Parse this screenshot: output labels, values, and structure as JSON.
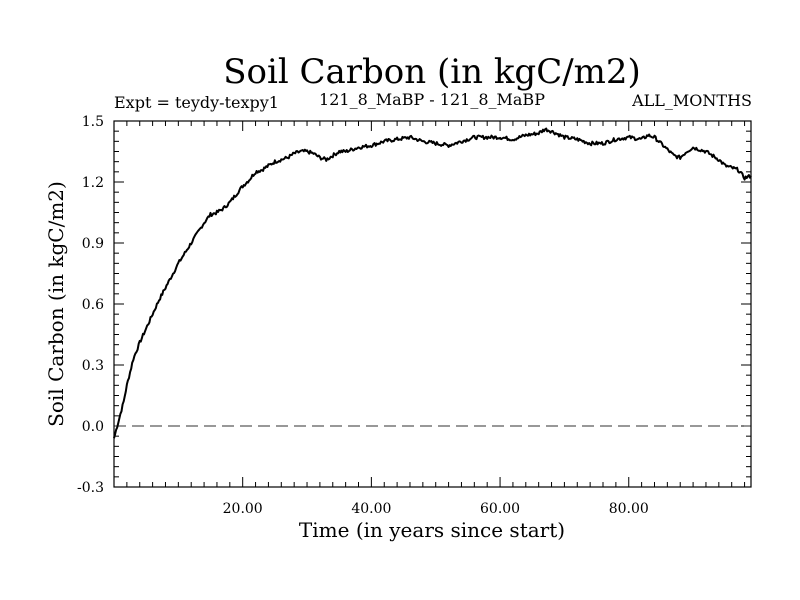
{
  "chart_data": {
    "type": "line",
    "title": "Soil Carbon (in kgC/m2)",
    "subtitle_left": "Expt = teydy-texpy1",
    "subtitle_center": "121_8_MaBP - 121_8_MaBP",
    "subtitle_right": "ALL_MONTHS",
    "xlabel": "Time (in years since start)",
    "ylabel": "Soil Carbon (in kgC/m2)",
    "xlim": [
      0,
      99
    ],
    "ylim": [
      -0.3,
      1.5
    ],
    "x_ticks": [
      20,
      40,
      60,
      80
    ],
    "x_tick_labels": [
      "20.00",
      "40.00",
      "60.00",
      "80.00"
    ],
    "y_ticks": [
      -0.3,
      0.0,
      0.3,
      0.6,
      0.9,
      1.2,
      1.5
    ],
    "y_tick_labels": [
      "-0.3",
      "0.0",
      "0.3",
      "0.6",
      "0.9",
      "1.2",
      "1.5"
    ],
    "zero_line": 0.0,
    "series": [
      {
        "name": "Soil Carbon",
        "x": [
          0.0,
          0.5,
          1.0,
          1.5,
          2.0,
          3.0,
          4.0,
          5.0,
          6.0,
          7.0,
          8.0,
          9.0,
          10.0,
          11.0,
          12.0,
          13.0,
          14.0,
          15.0,
          16.0,
          17.0,
          18.0,
          19.0,
          20.0,
          21.0,
          22.0,
          23.0,
          24.0,
          25.0,
          26.0,
          27.0,
          28.0,
          29.0,
          30.0,
          31.0,
          32.0,
          33.0,
          34.0,
          35.0,
          36.0,
          38.0,
          40.0,
          42.0,
          44.0,
          46.0,
          47.0,
          48.0,
          50.0,
          52.0,
          54.0,
          55.0,
          56.0,
          58.0,
          60.0,
          62.0,
          64.0,
          66.0,
          67.0,
          68.0,
          70.0,
          72.0,
          74.0,
          76.0,
          78.0,
          80.0,
          82.0,
          83.0,
          84.0,
          85.0,
          86.0,
          87.0,
          88.0,
          89.0,
          90.0,
          91.0,
          92.0,
          93.0,
          94.0,
          95.0,
          96.0,
          97.0,
          98.0,
          99.0
        ],
        "y": [
          -0.06,
          0.0,
          0.06,
          0.12,
          0.2,
          0.33,
          0.41,
          0.48,
          0.55,
          0.62,
          0.68,
          0.74,
          0.8,
          0.85,
          0.9,
          0.95,
          1.0,
          1.04,
          1.05,
          1.07,
          1.1,
          1.14,
          1.18,
          1.21,
          1.25,
          1.26,
          1.28,
          1.3,
          1.31,
          1.32,
          1.34,
          1.35,
          1.35,
          1.34,
          1.32,
          1.31,
          1.33,
          1.35,
          1.35,
          1.37,
          1.38,
          1.4,
          1.41,
          1.42,
          1.41,
          1.4,
          1.39,
          1.38,
          1.4,
          1.41,
          1.42,
          1.42,
          1.42,
          1.41,
          1.43,
          1.44,
          1.46,
          1.45,
          1.42,
          1.41,
          1.39,
          1.39,
          1.41,
          1.42,
          1.41,
          1.43,
          1.42,
          1.39,
          1.36,
          1.33,
          1.32,
          1.35,
          1.37,
          1.36,
          1.35,
          1.33,
          1.31,
          1.28,
          1.27,
          1.26,
          1.22,
          1.23
        ]
      }
    ]
  }
}
